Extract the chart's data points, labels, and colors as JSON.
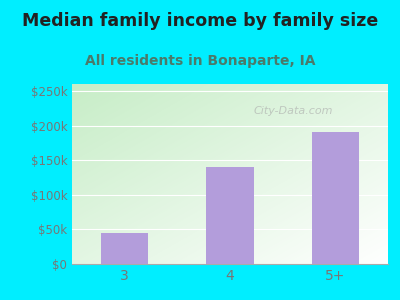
{
  "categories": [
    "3",
    "4",
    "5+"
  ],
  "values": [
    45000,
    140000,
    190000
  ],
  "bar_color": "#b39ddb",
  "title": "Median family income by family size",
  "subtitle": "All residents in Bonaparte, IA",
  "title_fontsize": 12.5,
  "subtitle_fontsize": 10,
  "title_color": "#222222",
  "subtitle_color": "#4a7a6a",
  "bg_color": "#00eeff",
  "plot_bg_topleft": "#c8eec8",
  "plot_bg_bottomright": "#f8fff0",
  "ylabel_ticks": [
    0,
    50000,
    100000,
    150000,
    200000,
    250000
  ],
  "ytick_labels": [
    "$0",
    "$50k",
    "$100k",
    "$150k",
    "$200k",
    "$250k"
  ],
  "ylim": [
    0,
    260000
  ],
  "tick_color": "#777777",
  "watermark": "City-Data.com",
  "grid_color": "#ffffff"
}
